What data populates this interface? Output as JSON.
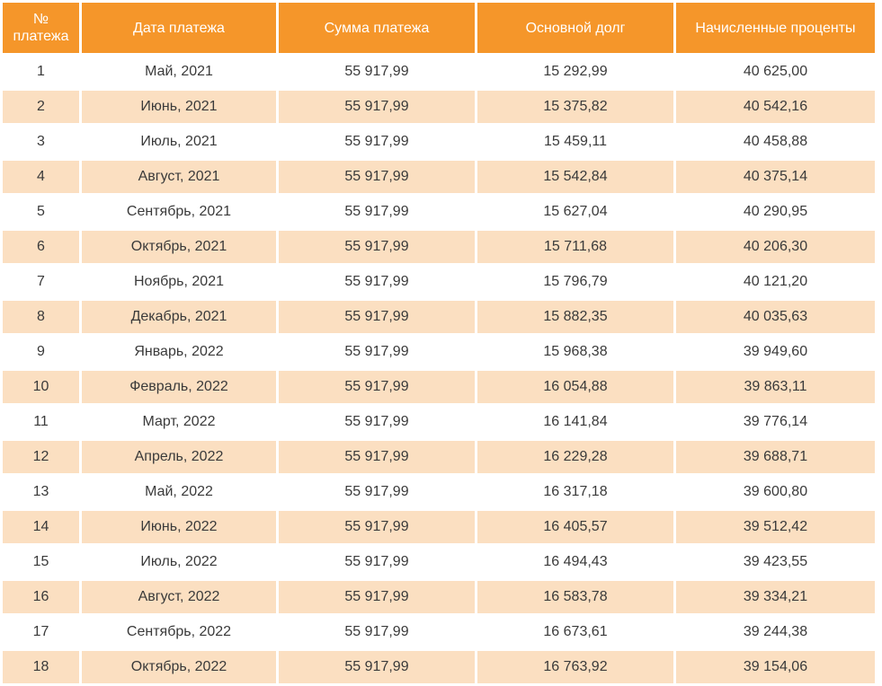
{
  "table": {
    "headers": {
      "num": "№\nплатежа",
      "date": "Дата платежа",
      "payment": "Сумма платежа",
      "principal": "Основной долг",
      "interest": "Начисленные проценты"
    },
    "rows": [
      {
        "num": "1",
        "date": "Май, 2021",
        "payment": "55 917,99",
        "principal": "15 292,99",
        "interest": "40 625,00"
      },
      {
        "num": "2",
        "date": "Июнь, 2021",
        "payment": "55 917,99",
        "principal": "15 375,82",
        "interest": "40 542,16"
      },
      {
        "num": "3",
        "date": "Июль, 2021",
        "payment": "55 917,99",
        "principal": "15 459,11",
        "interest": "40 458,88"
      },
      {
        "num": "4",
        "date": "Август, 2021",
        "payment": "55 917,99",
        "principal": "15 542,84",
        "interest": "40 375,14"
      },
      {
        "num": "5",
        "date": "Сентябрь, 2021",
        "payment": "55 917,99",
        "principal": "15 627,04",
        "interest": "40 290,95"
      },
      {
        "num": "6",
        "date": "Октябрь, 2021",
        "payment": "55 917,99",
        "principal": "15 711,68",
        "interest": "40 206,30"
      },
      {
        "num": "7",
        "date": "Ноябрь, 2021",
        "payment": "55 917,99",
        "principal": "15 796,79",
        "interest": "40 121,20"
      },
      {
        "num": "8",
        "date": "Декабрь, 2021",
        "payment": "55 917,99",
        "principal": "15 882,35",
        "interest": "40 035,63"
      },
      {
        "num": "9",
        "date": "Январь, 2022",
        "payment": "55 917,99",
        "principal": "15 968,38",
        "interest": "39 949,60"
      },
      {
        "num": "10",
        "date": "Февраль, 2022",
        "payment": "55 917,99",
        "principal": "16 054,88",
        "interest": "39 863,11"
      },
      {
        "num": "11",
        "date": "Март, 2022",
        "payment": "55 917,99",
        "principal": "16 141,84",
        "interest": "39 776,14"
      },
      {
        "num": "12",
        "date": "Апрель, 2022",
        "payment": "55 917,99",
        "principal": "16 229,28",
        "interest": "39 688,71"
      },
      {
        "num": "13",
        "date": "Май, 2022",
        "payment": "55 917,99",
        "principal": "16 317,18",
        "interest": "39 600,80"
      },
      {
        "num": "14",
        "date": "Июнь, 2022",
        "payment": "55 917,99",
        "principal": "16 405,57",
        "interest": "39 512,42"
      },
      {
        "num": "15",
        "date": "Июль, 2022",
        "payment": "55 917,99",
        "principal": "16 494,43",
        "interest": "39 423,55"
      },
      {
        "num": "16",
        "date": "Август, 2022",
        "payment": "55 917,99",
        "principal": "16 583,78",
        "interest": "39 334,21"
      },
      {
        "num": "17",
        "date": "Сентябрь, 2022",
        "payment": "55 917,99",
        "principal": "16 673,61",
        "interest": "39 244,38"
      },
      {
        "num": "18",
        "date": "Октябрь, 2022",
        "payment": "55 917,99",
        "principal": "16 763,92",
        "interest": "39 154,06"
      }
    ]
  },
  "colors": {
    "header_bg": "#f5962a",
    "header_text": "#ffffff",
    "row_even_bg": "#fbdfc1",
    "row_odd_bg": "#ffffff",
    "cell_text": "#3a3a3a"
  }
}
